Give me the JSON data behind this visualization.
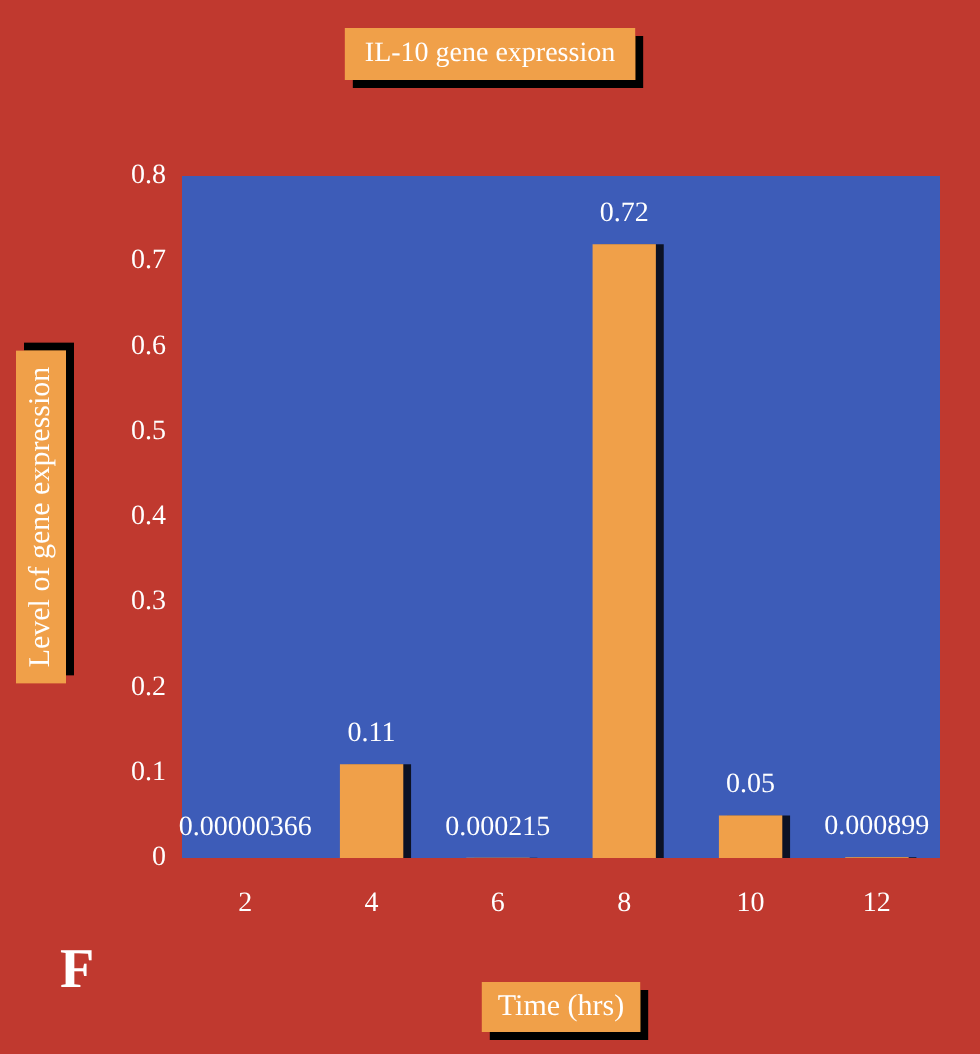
{
  "chart_data": {
    "type": "bar",
    "title": "IL-10 gene expression",
    "xlabel": "Time (hrs)",
    "ylabel": "Level of gene expression",
    "categories": [
      "2",
      "4",
      "6",
      "8",
      "10",
      "12"
    ],
    "values": [
      3.66e-06,
      0.11,
      0.000215,
      0.72,
      0.05,
      0.000899
    ],
    "color": "#f0a048",
    "ylim": [
      0,
      0.8
    ],
    "yticks": [
      0,
      0.1,
      0.2,
      0.3,
      0.4,
      0.5,
      0.6,
      0.7,
      0.8
    ],
    "value_labels": [
      "0.00000366",
      "0.11",
      "0.000215",
      "0.72",
      "0.05",
      "0.000899"
    ],
    "grid": false,
    "annotations": [
      "F"
    ]
  }
}
